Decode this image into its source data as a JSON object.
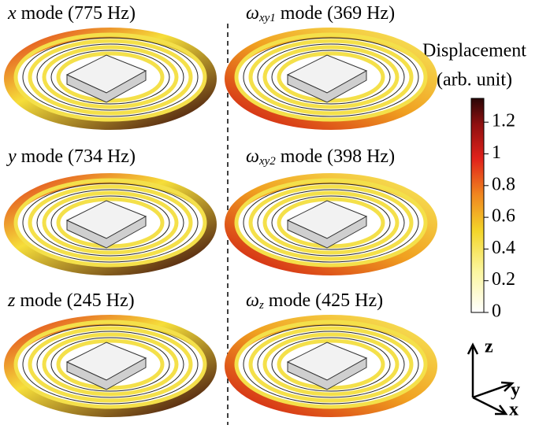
{
  "panels": [
    {
      "symbol": "x",
      "rest": "mode (775 Hz)"
    },
    {
      "symbol": "ω",
      "sub": "xy1",
      "rest": "mode (369 Hz)"
    },
    {
      "symbol": "y",
      "rest": "mode (734 Hz)"
    },
    {
      "symbol": "ω",
      "sub": "xy2",
      "rest": "mode (398 Hz)"
    },
    {
      "symbol": "z",
      "rest": "mode (245 Hz)"
    },
    {
      "symbol": "ω",
      "sub": "z",
      "rest": "mode (425 Hz)"
    }
  ],
  "colorbar": {
    "label": [
      "Displacement",
      "(arb. unit)"
    ],
    "lim": [
      0,
      1.35
    ],
    "ticks": [
      0,
      0.2,
      0.4,
      0.6,
      0.8,
      1,
      1.2
    ]
  },
  "axes": {
    "z": "z",
    "y": "y",
    "x": "x"
  }
}
